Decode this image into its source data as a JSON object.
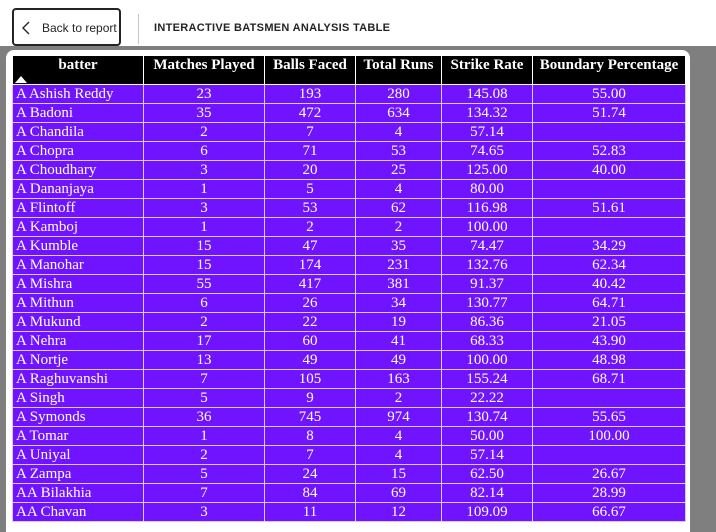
{
  "nav": {
    "back_label": "Back to report",
    "page_title": "INTERACTIVE BATSMEN ANALYSIS TABLE"
  },
  "table": {
    "columns": [
      "batter",
      "Matches Played",
      "Balls Faced",
      "Total Runs",
      "Strike Rate",
      "Boundary Percentage"
    ],
    "sort": {
      "column": "batter",
      "direction": "ascending"
    },
    "rows": [
      [
        "A Ashish Reddy",
        "23",
        "193",
        "280",
        "145.08",
        "55.00"
      ],
      [
        "A Badoni",
        "35",
        "472",
        "634",
        "134.32",
        "51.74"
      ],
      [
        "A Chandila",
        "2",
        "7",
        "4",
        "57.14",
        ""
      ],
      [
        "A Chopra",
        "6",
        "71",
        "53",
        "74.65",
        "52.83"
      ],
      [
        "A Choudhary",
        "3",
        "20",
        "25",
        "125.00",
        "40.00"
      ],
      [
        "A Dananjaya",
        "1",
        "5",
        "4",
        "80.00",
        ""
      ],
      [
        "A Flintoff",
        "3",
        "53",
        "62",
        "116.98",
        "51.61"
      ],
      [
        "A Kamboj",
        "1",
        "2",
        "2",
        "100.00",
        ""
      ],
      [
        "A Kumble",
        "15",
        "47",
        "35",
        "74.47",
        "34.29"
      ],
      [
        "A Manohar",
        "15",
        "174",
        "231",
        "132.76",
        "62.34"
      ],
      [
        "A Mishra",
        "55",
        "417",
        "381",
        "91.37",
        "40.42"
      ],
      [
        "A Mithun",
        "6",
        "26",
        "34",
        "130.77",
        "64.71"
      ],
      [
        "A Mukund",
        "2",
        "22",
        "19",
        "86.36",
        "21.05"
      ],
      [
        "A Nehra",
        "17",
        "60",
        "41",
        "68.33",
        "43.90"
      ],
      [
        "A Nortje",
        "13",
        "49",
        "49",
        "100.00",
        "48.98"
      ],
      [
        "A Raghuvanshi",
        "7",
        "105",
        "163",
        "155.24",
        "68.71"
      ],
      [
        "A Singh",
        "5",
        "9",
        "2",
        "22.22",
        ""
      ],
      [
        "A Symonds",
        "36",
        "745",
        "974",
        "130.74",
        "55.65"
      ],
      [
        "A Tomar",
        "1",
        "8",
        "4",
        "50.00",
        "100.00"
      ],
      [
        "A Uniyal",
        "2",
        "7",
        "4",
        "57.14",
        ""
      ],
      [
        "A Zampa",
        "5",
        "24",
        "15",
        "62.50",
        "26.67"
      ],
      [
        "AA Bilakhia",
        "7",
        "84",
        "69",
        "82.14",
        "28.99"
      ],
      [
        "AA Chavan",
        "3",
        "11",
        "12",
        "109.09",
        "66.67"
      ]
    ]
  },
  "colors": {
    "header_bg": "#000000",
    "cell_bg": "#7014ff",
    "cell_text": "#ffffff",
    "canvas_bg": "#7f7f7f"
  },
  "icons": {
    "back": "chevron-left-icon",
    "sort": "sort-ascending-icon"
  }
}
